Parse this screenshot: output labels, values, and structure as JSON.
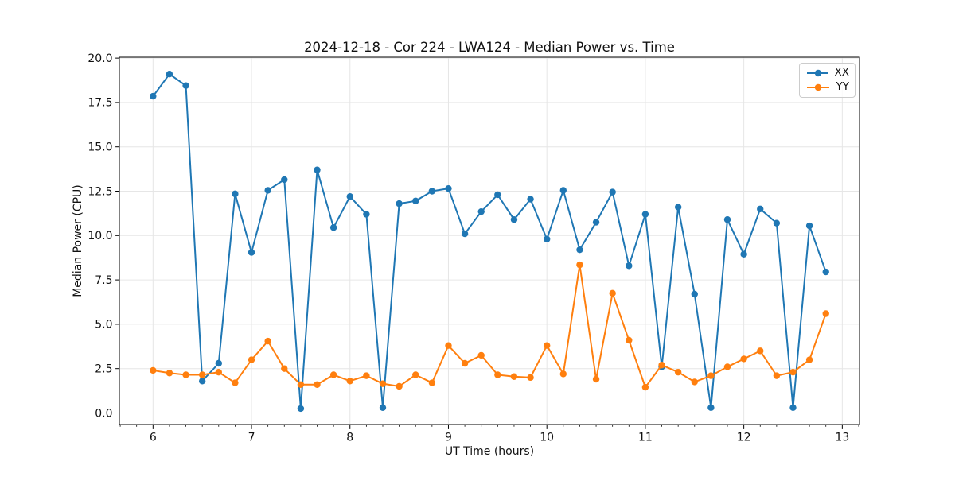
{
  "chart_data": {
    "type": "line",
    "title": "2024-12-18 - Cor 224 - LWA124 - Median Power vs. Time",
    "xlabel": "UT Time (hours)",
    "ylabel": "Median Power (CPU)",
    "xlim": [
      5.658,
      13.175
    ],
    "ylim": [
      -0.65,
      20.05
    ],
    "xticks": [
      6,
      7,
      8,
      9,
      10,
      11,
      12,
      13
    ],
    "xtick_labels": [
      "6",
      "7",
      "8",
      "9",
      "10",
      "11",
      "12",
      "13"
    ],
    "x_minor_tick_step": 0.166667,
    "yticks": [
      0,
      2.5,
      5,
      7.5,
      10,
      12.5,
      15,
      17.5,
      20
    ],
    "ytick_labels": [
      "0.0",
      "2.5",
      "5.0",
      "7.5",
      "10.0",
      "12.5",
      "15.0",
      "17.5",
      "20.0"
    ],
    "grid": true,
    "grid_color": "#e6e6e6",
    "legend_position": "upper right",
    "x": [
      6.0,
      6.1667,
      6.3333,
      6.5,
      6.6667,
      6.8333,
      7.0,
      7.1667,
      7.3333,
      7.5,
      7.6667,
      7.8333,
      8.0,
      8.1667,
      8.3333,
      8.5,
      8.6667,
      8.8333,
      9.0,
      9.1667,
      9.3333,
      9.5,
      9.6667,
      9.8333,
      10.0,
      10.1667,
      10.3333,
      10.5,
      10.6667,
      10.8333,
      11.0,
      11.1667,
      11.3333,
      11.5,
      11.6667,
      11.8333,
      12.0,
      12.1667,
      12.3333,
      12.5,
      12.6667,
      12.8333
    ],
    "series": [
      {
        "name": "XX",
        "color": "#1f77b4",
        "values": [
          17.85,
          19.1,
          18.45,
          1.8,
          2.8,
          12.35,
          9.05,
          12.55,
          13.15,
          0.25,
          13.7,
          10.45,
          12.2,
          11.2,
          0.3,
          11.8,
          11.95,
          12.5,
          12.65,
          10.1,
          11.35,
          12.3,
          10.9,
          12.05,
          9.8,
          12.55,
          9.2,
          10.75,
          12.45,
          8.3,
          11.2,
          2.6,
          11.6,
          6.7,
          0.3,
          10.9,
          8.95,
          11.5,
          10.7,
          0.3,
          10.55,
          7.95
        ]
      },
      {
        "name": "YY",
        "color": "#ff7f0e",
        "values": [
          2.4,
          2.25,
          2.15,
          2.15,
          2.3,
          1.7,
          3.0,
          4.05,
          2.5,
          1.6,
          1.6,
          2.15,
          1.8,
          2.1,
          1.65,
          1.5,
          2.15,
          1.7,
          3.8,
          2.8,
          3.25,
          2.15,
          2.05,
          2.0,
          3.8,
          2.2,
          8.35,
          1.9,
          6.75,
          4.1,
          1.45,
          2.7,
          2.3,
          1.75,
          2.1,
          2.6,
          3.05,
          3.5,
          2.1,
          2.3,
          3.0,
          5.6
        ]
      }
    ]
  }
}
